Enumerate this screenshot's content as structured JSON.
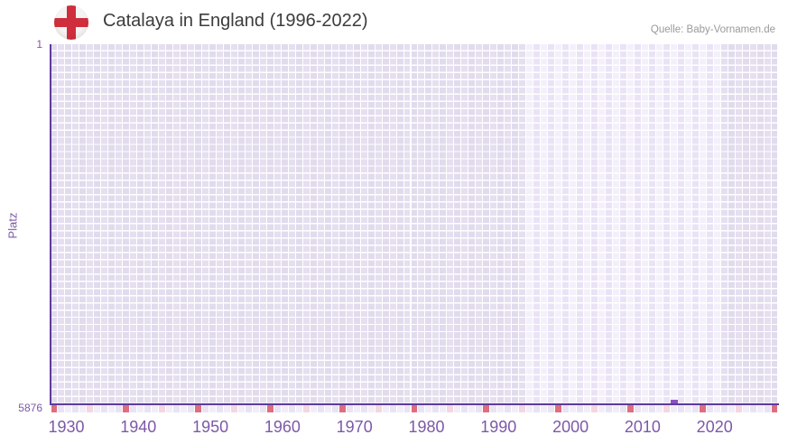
{
  "header": {
    "title": "Catalaya in England (1996-2022)",
    "source": "Quelle: Baby-Vornamen.de",
    "flag_icon": "england-flag"
  },
  "chart_data": {
    "type": "scatter",
    "title": "Catalaya in England (1996-2022)",
    "xlabel": "",
    "ylabel": "Platz",
    "y_axis": {
      "top_label": "1",
      "bottom_label": "5876",
      "min": 1,
      "max": 5876,
      "inverted": true
    },
    "x_axis": {
      "min": 1930,
      "max": 2030,
      "tick_labels": [
        "1930",
        "1940",
        "1950",
        "1960",
        "1970",
        "1980",
        "1990",
        "2000",
        "2010",
        "2020"
      ],
      "tick_interval": 10
    },
    "highlight_period": {
      "from": 1996,
      "to": 2022
    },
    "points": [
      {
        "year": 2016,
        "rank": 5800
      }
    ],
    "grid": true,
    "legend": "none",
    "colors": {
      "accent_text": "#7d58a8",
      "axis_line": "#5e3a9c",
      "marker": "#8b51c2",
      "cell_outside": "#e1dbed",
      "cell_outside_alt": "#e5dff0",
      "cell_highlight": "#f4f0fb",
      "cell_highlight_alt": "#eae3f6",
      "grid_gap": "#ffffff",
      "strip_decade": "#dd6e7e",
      "strip_half_decade": "#f4d7e0",
      "strip_base": "#f1edf9",
      "strip_base_alt": "#e9e3f4",
      "title_text": "#3c3c3c",
      "source_text": "#9a9a9a",
      "flag_red": "#cf2e3c"
    }
  }
}
